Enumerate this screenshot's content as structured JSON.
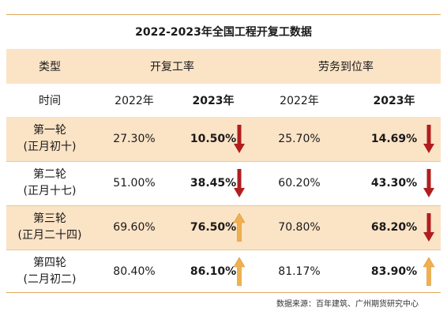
{
  "title": "2022-2023年全国工程开复工数据",
  "header": {
    "type_label": "类型",
    "group1": "开复工率",
    "group2": "劳务到位率"
  },
  "subheader": {
    "time_label": "时间",
    "y2022a": "2022年",
    "y2023a": "2023年",
    "y2022b": "2022年",
    "y2023b": "2023年"
  },
  "rows": [
    {
      "name": "第一轮",
      "sub": "(正月初十)",
      "work2022": "27.30%",
      "work2023": "10.50%",
      "work_trend": "down",
      "labor2022": "25.70%",
      "labor2023": "14.69%",
      "labor_trend": "down"
    },
    {
      "name": "第二轮",
      "sub": "(正月十七)",
      "work2022": "51.00%",
      "work2023": "38.45%",
      "work_trend": "down",
      "labor2022": "60.20%",
      "labor2023": "43.30%",
      "labor_trend": "down"
    },
    {
      "name": "第三轮",
      "sub": "(正月二十四)",
      "work2022": "69.60%",
      "work2023": "76.50%",
      "work_trend": "up",
      "labor2022": "70.80%",
      "labor2023": "68.20%",
      "labor_trend": "down"
    },
    {
      "name": "第四轮",
      "sub": "(二月初二)",
      "work2022": "80.40%",
      "work2023": "86.10%",
      "work_trend": "up",
      "labor2022": "81.17%",
      "labor2023": "83.90%",
      "labor_trend": "up"
    }
  ],
  "colors": {
    "down_arrow": "#b01e1e",
    "up_arrow": "#f0b050",
    "shade": "#fbe3c6"
  },
  "source": "数据来源：百年建筑、广州期货研究中心"
}
